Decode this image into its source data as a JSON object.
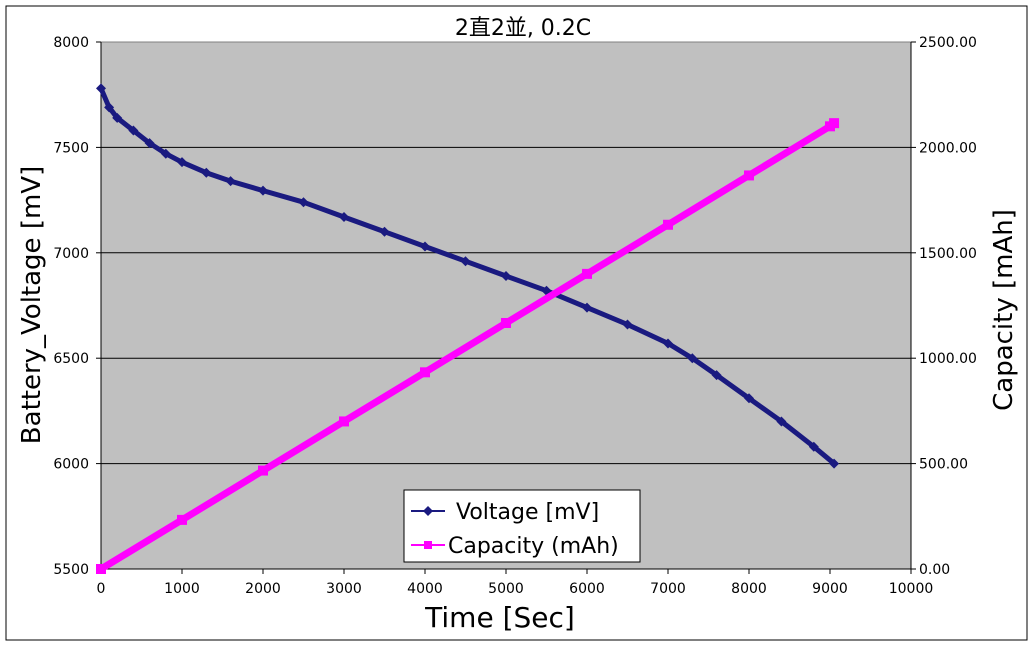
{
  "chart_data": {
    "type": "line",
    "title": "2直2並, 0.2C",
    "xlabel": "Time [Sec]",
    "ylabel": "Battery_Voltage [mV]",
    "y2label": "Capacity [mAh]",
    "xlim": [
      0,
      10000
    ],
    "ylim": [
      5500,
      8000
    ],
    "y2lim": [
      0,
      2500
    ],
    "x_ticks": [
      "0",
      "1000",
      "2000",
      "3000",
      "4000",
      "5000",
      "6000",
      "7000",
      "8000",
      "9000",
      "10000"
    ],
    "y_ticks": [
      "5500",
      "6000",
      "6500",
      "7000",
      "7500",
      "8000"
    ],
    "y2_ticks": [
      "0.00",
      "500.00",
      "1000.00",
      "1500.00",
      "2000.00",
      "2500.00"
    ],
    "grid": true,
    "plot_background": "#c0c0c0",
    "legend": {
      "placement": "bottom-center"
    },
    "series": [
      {
        "name": "Voltage [mV]",
        "axis": "left",
        "color": "#1a1a80",
        "marker": "diamond",
        "x": [
          0,
          100,
          200,
          400,
          600,
          800,
          1000,
          1300,
          1600,
          2000,
          2500,
          3000,
          3500,
          4000,
          4500,
          5000,
          5500,
          6000,
          6500,
          7000,
          7300,
          7600,
          8000,
          8400,
          8800,
          9050
        ],
        "y": [
          7780,
          7690,
          7640,
          7580,
          7520,
          7470,
          7430,
          7380,
          7340,
          7295,
          7240,
          7170,
          7100,
          7030,
          6960,
          6890,
          6820,
          6740,
          6660,
          6570,
          6500,
          6420,
          6310,
          6200,
          6080,
          6000
        ]
      },
      {
        "name": "Capacity (mAh)",
        "axis": "right",
        "color": "#ff00ff",
        "marker": "square",
        "x": [
          0,
          1000,
          2000,
          3000,
          4000,
          5000,
          6000,
          7000,
          8000,
          9000,
          9050
        ],
        "y": [
          0,
          233,
          467,
          700,
          933,
          1167,
          1400,
          1633,
          1867,
          2100,
          2115
        ]
      }
    ]
  }
}
